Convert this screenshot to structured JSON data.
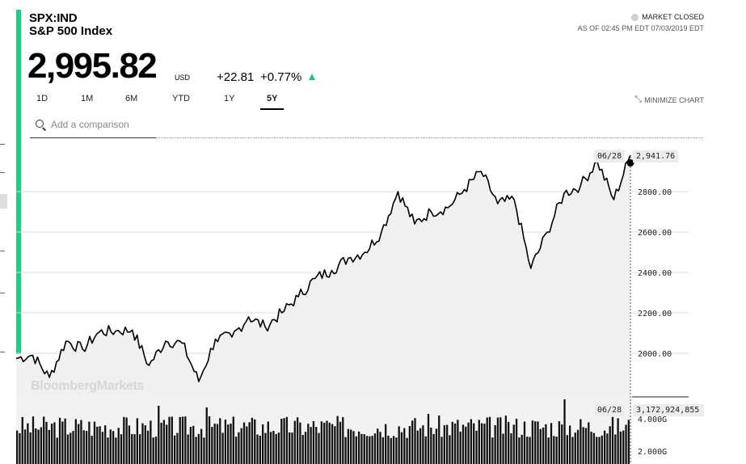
{
  "header": {
    "ticker": "SPX:IND",
    "name": "S&P 500 Index",
    "price": "2,995.82",
    "currency": "USD",
    "change": "+22.81",
    "change_pct": "+0.77%",
    "market_status": "MARKET CLOSED",
    "as_of": "AS OF 02:45 PM EDT 07/03/2019 EDT"
  },
  "tabs": [
    {
      "label": "1D",
      "active": false
    },
    {
      "label": "1M",
      "active": false
    },
    {
      "label": "6M",
      "active": false
    },
    {
      "label": "YTD",
      "active": false
    },
    {
      "label": "1Y",
      "active": false
    },
    {
      "label": "5Y",
      "active": true
    }
  ],
  "minimize_label": "MINIMIZE CHART",
  "search": {
    "placeholder": "Add a comparison"
  },
  "watermark": "BloombergMarkets",
  "colors": {
    "accent": "#22cc88",
    "up": "#1ec38b",
    "fill": "#f0f0f0",
    "line": "#000000"
  },
  "hover": {
    "date": "06/28",
    "price": "2,941.76",
    "volume": "3,172,924,855"
  },
  "chart_data": [
    {
      "type": "area",
      "title": "",
      "yticks": [
        2000,
        2200,
        2400,
        2600,
        2800
      ],
      "ytick_labels": [
        "2000.00",
        "2200.00",
        "2400.00",
        "2600.00",
        "2800.00"
      ],
      "ylim": [
        1780,
        3060
      ],
      "x": [
        "2014-07",
        "2014-09",
        "2014-10",
        "2014-11",
        "2015-01",
        "2015-03",
        "2015-05",
        "2015-07",
        "2015-08",
        "2015-10",
        "2015-12",
        "2016-02",
        "2016-04",
        "2016-06",
        "2016-08",
        "2016-10",
        "2016-11",
        "2017-01",
        "2017-03",
        "2017-05",
        "2017-07",
        "2017-09",
        "2017-11",
        "2018-01",
        "2018-02",
        "2018-03",
        "2018-05",
        "2018-07",
        "2018-09",
        "2018-10",
        "2018-11",
        "2018-12",
        "2019-01",
        "2019-02",
        "2019-03",
        "2019-05",
        "2019-06",
        "2019-07"
      ],
      "y": [
        1975,
        1990,
        1880,
        2060,
        2020,
        2105,
        2110,
        2115,
        1940,
        2060,
        2050,
        1860,
        2070,
        2080,
        2180,
        2130,
        2200,
        2280,
        2370,
        2410,
        2470,
        2500,
        2600,
        2800,
        2640,
        2700,
        2720,
        2810,
        2900,
        2740,
        2760,
        2420,
        2600,
        2790,
        2830,
        2950,
        2760,
        2980
      ],
      "hover": {
        "date": "06/28",
        "value": 2941.76
      }
    },
    {
      "type": "bar",
      "title": "",
      "yticks": [
        2000000000,
        4000000000
      ],
      "ytick_labels": [
        "2.000G",
        "4.000G"
      ],
      "ylim": [
        1200000000,
        5400000000
      ],
      "typical_range": [
        2800000000,
        4200000000
      ],
      "peaks": [
        {
          "t": 0.23,
          "value": 4800000000
        },
        {
          "t": 0.31,
          "value": 4700000000
        },
        {
          "t": 0.67,
          "value": 4300000000
        },
        {
          "t": 0.89,
          "value": 5200000000
        }
      ],
      "hover": {
        "date": "06/28",
        "value": 3172924855
      }
    }
  ]
}
